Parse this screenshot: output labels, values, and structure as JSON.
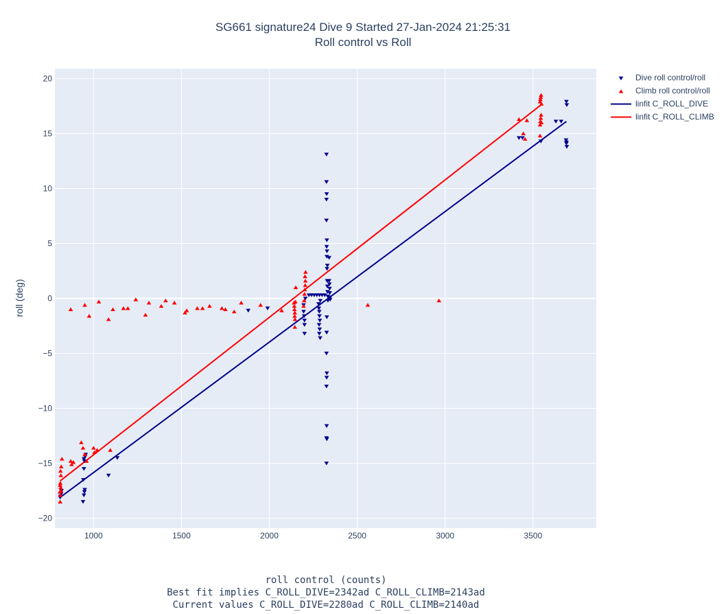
{
  "title_line1": "SG661 signature24 Dive 9 Started 27-Jan-2024 21:25:31",
  "title_line2": "Roll control vs Roll",
  "xlabel_lines": [
    "roll control (counts)",
    "Best fit implies C_ROLL_DIVE=2342ad C_ROLL_CLIMB=2143ad",
    "Current values C_ROLL_DIVE=2280ad C_ROLL_CLIMB=2140ad"
  ],
  "ylabel": "roll (deg)",
  "legend": [
    {
      "label": "Dive roll control/roll",
      "kind": "marker-down",
      "color": "#00008b"
    },
    {
      "label": "Climb roll control/roll",
      "kind": "marker-up",
      "color": "#ff0000"
    },
    {
      "label": "linfit C_ROLL_DIVE",
      "kind": "line",
      "color": "#00008b"
    },
    {
      "label": "linfit C_ROLL_CLIMB",
      "kind": "line",
      "color": "#ff0000"
    }
  ],
  "chart_data": {
    "type": "scatter",
    "xlim": [
      780,
      3860
    ],
    "ylim": [
      -20.9,
      20.9
    ],
    "xticks": [
      1000,
      1500,
      2000,
      2500,
      3000,
      3500
    ],
    "yticks": [
      -20,
      -15,
      -10,
      -5,
      0,
      5,
      10,
      15,
      20
    ],
    "grid": true,
    "legend_position": "top-right, outside plot",
    "series": [
      {
        "name": "Dive roll control/roll",
        "marker": "triangle-down",
        "color": "#00008b",
        "points": [
          [
            810,
            -18.1
          ],
          [
            815,
            -17.8
          ],
          [
            818,
            -17.5
          ],
          [
            812,
            -18.0
          ],
          [
            940,
            -18.5
          ],
          [
            945,
            -17.9
          ],
          [
            948,
            -17.6
          ],
          [
            950,
            -17.4
          ],
          [
            942,
            -16.5
          ],
          [
            945,
            -15.5
          ],
          [
            948,
            -14.8
          ],
          [
            952,
            -14.4
          ],
          [
            955,
            -14.2
          ],
          [
            945,
            -14.6
          ],
          [
            1085,
            -16.1
          ],
          [
            1135,
            -14.5
          ],
          [
            1880,
            -1.1
          ],
          [
            1990,
            -0.9
          ],
          [
            2195,
            -0.6
          ],
          [
            2195,
            -1.2
          ],
          [
            2198,
            -1.6
          ],
          [
            2200,
            -2.0
          ],
          [
            2200,
            -2.4
          ],
          [
            2200,
            -3.2
          ],
          [
            2205,
            0.0
          ],
          [
            2225,
            0.3
          ],
          [
            2240,
            0.3
          ],
          [
            2255,
            0.3
          ],
          [
            2270,
            0.3
          ],
          [
            2285,
            0.3
          ],
          [
            2300,
            0.3
          ],
          [
            2315,
            0.3
          ],
          [
            2280,
            -0.5
          ],
          [
            2282,
            -0.9
          ],
          [
            2284,
            -1.2
          ],
          [
            2285,
            -1.6
          ],
          [
            2287,
            -2.0
          ],
          [
            2283,
            -2.4
          ],
          [
            2286,
            -2.8
          ],
          [
            2284,
            -3.2
          ],
          [
            2289,
            -3.6
          ],
          [
            2290,
            -0.2
          ],
          [
            2325,
            13.1
          ],
          [
            2325,
            10.6
          ],
          [
            2326,
            9.5
          ],
          [
            2325,
            9.0
          ],
          [
            2325,
            7.1
          ],
          [
            2327,
            5.3
          ],
          [
            2326,
            4.7
          ],
          [
            2328,
            4.3
          ],
          [
            2327,
            3.8
          ],
          [
            2330,
            3.0
          ],
          [
            2328,
            2.7
          ],
          [
            2329,
            1.6
          ],
          [
            2330,
            1.1
          ],
          [
            2331,
            0.6
          ],
          [
            2332,
            0.2
          ],
          [
            2333,
            -0.2
          ],
          [
            2340,
            3.7
          ],
          [
            2340,
            1.6
          ],
          [
            2342,
            1.3
          ],
          [
            2343,
            0.9
          ],
          [
            2344,
            0.5
          ],
          [
            2345,
            0.1
          ],
          [
            2346,
            -0.1
          ],
          [
            2327,
            -1.7
          ],
          [
            2326,
            -3.1
          ],
          [
            2325,
            -5.0
          ],
          [
            2327,
            -6.8
          ],
          [
            2326,
            -7.2
          ],
          [
            2325,
            -8.0
          ],
          [
            2326,
            -11.6
          ],
          [
            2325,
            -12.7
          ],
          [
            2327,
            -12.8
          ],
          [
            2325,
            -15.0
          ],
          [
            3420,
            14.6
          ],
          [
            3440,
            14.6
          ],
          [
            3545,
            14.3
          ],
          [
            3630,
            16.1
          ],
          [
            3660,
            16.1
          ],
          [
            3690,
            17.9
          ],
          [
            3692,
            17.6
          ],
          [
            3688,
            14.4
          ],
          [
            3690,
            14.1
          ],
          [
            3692,
            13.8
          ],
          [
            3690,
            14.2
          ]
        ]
      },
      {
        "name": "Climb roll control/roll",
        "marker": "triangle-up",
        "color": "#ff0000",
        "points": [
          [
            810,
            -18.5
          ],
          [
            812,
            -17.9
          ],
          [
            815,
            -17.5
          ],
          [
            813,
            -17.2
          ],
          [
            811,
            -16.8
          ],
          [
            814,
            -16.1
          ],
          [
            812,
            -15.7
          ],
          [
            816,
            -15.3
          ],
          [
            820,
            -14.6
          ],
          [
            810,
            -17.0
          ],
          [
            808,
            -17.6
          ],
          [
            870,
            -14.8
          ],
          [
            875,
            -15.1
          ],
          [
            885,
            -14.9
          ],
          [
            930,
            -13.1
          ],
          [
            940,
            -13.6
          ],
          [
            950,
            -14.2
          ],
          [
            960,
            -14.8
          ],
          [
            1000,
            -13.6
          ],
          [
            1005,
            -14.0
          ],
          [
            1020,
            -13.8
          ],
          [
            1095,
            -13.8
          ],
          [
            870,
            -1.0
          ],
          [
            950,
            -0.6
          ],
          [
            975,
            -1.6
          ],
          [
            1030,
            -0.3
          ],
          [
            1085,
            -1.9
          ],
          [
            1110,
            -1.0
          ],
          [
            1170,
            -0.9
          ],
          [
            1195,
            -0.9
          ],
          [
            1240,
            -0.1
          ],
          [
            1295,
            -1.5
          ],
          [
            1315,
            -0.4
          ],
          [
            1385,
            -0.7
          ],
          [
            1410,
            -0.2
          ],
          [
            1460,
            -0.4
          ],
          [
            1520,
            -1.3
          ],
          [
            1530,
            -1.1
          ],
          [
            1590,
            -0.9
          ],
          [
            1620,
            -0.9
          ],
          [
            1660,
            -0.7
          ],
          [
            1730,
            -0.9
          ],
          [
            1750,
            -1.0
          ],
          [
            1800,
            -1.2
          ],
          [
            1840,
            -0.4
          ],
          [
            1950,
            -0.6
          ],
          [
            2070,
            -1.1
          ],
          [
            2140,
            -0.4
          ],
          [
            2142,
            -0.7
          ],
          [
            2143,
            -1.0
          ],
          [
            2145,
            -1.3
          ],
          [
            2144,
            -1.6
          ],
          [
            2146,
            -1.9
          ],
          [
            2145,
            -2.6
          ],
          [
            2148,
            -0.3
          ],
          [
            2150,
            1.0
          ],
          [
            2195,
            -0.7
          ],
          [
            2198,
            -0.2
          ],
          [
            2200,
            0.4
          ],
          [
            2202,
            0.8
          ],
          [
            2204,
            1.2
          ],
          [
            2205,
            1.6
          ],
          [
            2203,
            2.0
          ],
          [
            2206,
            2.4
          ],
          [
            2560,
            -0.6
          ],
          [
            2965,
            -0.2
          ],
          [
            3420,
            16.3
          ],
          [
            3445,
            15.0
          ],
          [
            3455,
            14.5
          ],
          [
            3465,
            16.2
          ],
          [
            3540,
            14.8
          ],
          [
            3540,
            15.8
          ],
          [
            3542,
            16.1
          ],
          [
            3544,
            16.4
          ],
          [
            3546,
            16.7
          ],
          [
            3548,
            16.0
          ],
          [
            3540,
            17.9
          ],
          [
            3542,
            18.1
          ],
          [
            3544,
            18.3
          ],
          [
            3546,
            18.5
          ],
          [
            3548,
            17.7
          ]
        ]
      },
      {
        "name": "linfit C_ROLL_DIVE",
        "type": "line",
        "color": "#00008b",
        "points": [
          [
            810,
            -18.1
          ],
          [
            3690,
            16.1
          ]
        ]
      },
      {
        "name": "linfit C_ROLL_CLIMB",
        "type": "line",
        "color": "#ff0000",
        "points": [
          [
            810,
            -16.6
          ],
          [
            3545,
            17.6
          ]
        ]
      }
    ]
  }
}
